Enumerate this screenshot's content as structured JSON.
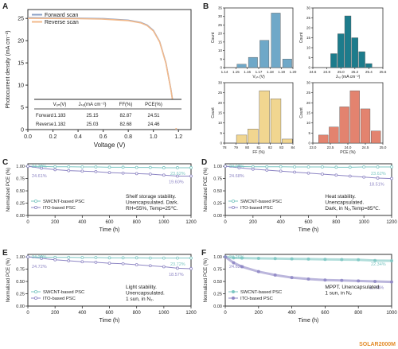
{
  "colors": {
    "teal": "#7cc6c2",
    "purple": "#8e86c4",
    "forward": "#8a9fc4",
    "reverse": "#f2b98b",
    "histA": "#6fa8c8",
    "histB": "#1d7c8c",
    "histC": "#f1d690",
    "histD": "#e3836f",
    "watermark": "#e38a28"
  },
  "watermark": "SOLAR2000M",
  "panelA": {
    "letter": "A",
    "xlabel": "Voltage (V)",
    "ylabel": "Photocurrent density (mA cm⁻²)",
    "xticks": [
      "0.0",
      "0.2",
      "0.4",
      "0.6",
      "0.8",
      "1.0",
      "1.2"
    ],
    "yticks": [
      "0",
      "5",
      "10",
      "15",
      "20",
      "25"
    ],
    "legend": [
      "Forward scan",
      "Reverse scan"
    ],
    "table": {
      "headers": [
        "Vₒₙ(V)",
        "Jₛₒ(mA cm⁻²)",
        "FF(%)",
        "PCE(%)"
      ],
      "rows": [
        {
          "label": "Forward",
          "values": [
            "1.183",
            "25.15",
            "82.87",
            "24.51"
          ]
        },
        {
          "label": "Reverse",
          "values": [
            "1.182",
            "25.03",
            "82.68",
            "24.46"
          ]
        }
      ]
    }
  },
  "panelB": {
    "letter": "B",
    "hists": [
      {
        "xlabel": "Vₒₙ (V)",
        "ylabel": "Count",
        "xticks": [
          "1.14",
          "1.15",
          "1.16",
          "1.17",
          "1.18",
          "1.19",
          "1.20"
        ],
        "yticks": [
          "0",
          "5",
          "10",
          "15",
          "20",
          "25",
          "30",
          "35"
        ]
      },
      {
        "xlabel": "Jₛₒ (mA cm⁻²)",
        "ylabel": "Count",
        "xticks": [
          "24.6",
          "24.8",
          "25.0",
          "25.2",
          "25.4",
          "25.6"
        ],
        "yticks": [
          "0",
          "5",
          "10",
          "15",
          "20",
          "25",
          "30"
        ]
      },
      {
        "xlabel": "FF (%)",
        "ylabel": "Count",
        "xticks": [
          "78",
          "79",
          "80",
          "81",
          "82",
          "83",
          "84"
        ],
        "yticks": [
          "0",
          "5",
          "10",
          "15",
          "20",
          "25",
          "30"
        ]
      },
      {
        "xlabel": "PCE (%)",
        "ylabel": "Count",
        "xticks": [
          "23.0",
          "23.5",
          "24.0",
          "24.5",
          "25.0"
        ],
        "yticks": [
          "0",
          "5",
          "10",
          "15",
          "20",
          "25",
          "30"
        ]
      }
    ]
  },
  "stability": [
    {
      "letter": "C",
      "xlabel": "Time (h)",
      "ylabel": "Normalized PCE (%)",
      "legend": [
        "SWCNT-based PSC",
        "ITO-based PSC"
      ],
      "annotation": [
        "Shelf storage stability.",
        "Unencapsulated. Dark.",
        "RH=55%, Temp=25℃."
      ],
      "labels": [
        "24.34%",
        "23.62%",
        "24.61%",
        "19.60%"
      ]
    },
    {
      "letter": "D",
      "xlabel": "Time (h)",
      "ylabel": "Normalized PCE (%)",
      "legend": [
        "SWCNT-based PSC",
        "ITO-based PSC"
      ],
      "annotation": [
        "Heat stability.",
        "Unencapsulated.",
        "Dark, in N₂,Temp=85℃."
      ],
      "labels": [
        "24.01%",
        "23.62%",
        "24.68%",
        "18.51%"
      ]
    },
    {
      "letter": "E",
      "xlabel": "Time (h)",
      "ylabel": "Normalized PCE (%)",
      "legend": [
        "SWCNT-based PSC",
        "ITO-based PSC"
      ],
      "annotation": [
        "Light stability.",
        "Unencapsulated.",
        "1 sun, in N₂."
      ],
      "labels": [
        "24.29%",
        "23.72%",
        "24.72%",
        "18.57%"
      ]
    },
    {
      "letter": "F",
      "xlabel": "Time (h)",
      "ylabel": "Normalized PCE (%)",
      "legend": [
        "SWCNT-based PSC",
        "ITO-based PSC"
      ],
      "annotation": [
        "MPPT. Unencapsulated.",
        "1 sun, in N₂"
      ],
      "labels": [
        "24.26%",
        "22.34%",
        "24.62%",
        "11.98%"
      ]
    }
  ],
  "chart_data": [
    {
      "type": "line",
      "panel": "A",
      "title": "",
      "xlabel": "Voltage (V)",
      "ylabel": "Photocurrent density (mA cm-2)",
      "xlim": [
        0,
        1.3
      ],
      "ylim": [
        0,
        27
      ],
      "series": [
        {
          "name": "Forward scan",
          "x": [
            0,
            0.2,
            0.4,
            0.6,
            0.8,
            0.9,
            0.95,
            1.0,
            1.05,
            1.1,
            1.14,
            1.17,
            1.183
          ],
          "y": [
            25.15,
            25.1,
            25.05,
            24.95,
            24.6,
            24.1,
            23.5,
            22.3,
            19.8,
            15.0,
            9.0,
            3.5,
            0
          ]
        },
        {
          "name": "Reverse scan",
          "x": [
            0,
            0.2,
            0.4,
            0.6,
            0.8,
            0.9,
            0.95,
            1.0,
            1.05,
            1.1,
            1.14,
            1.17,
            1.182
          ],
          "y": [
            25.03,
            25.0,
            24.95,
            24.85,
            24.5,
            24.0,
            23.4,
            22.2,
            19.7,
            14.9,
            8.9,
            3.4,
            0
          ]
        }
      ]
    },
    {
      "type": "bar",
      "panel": "B",
      "xlabel": "Voc (V)",
      "ylabel": "Count",
      "bins": [
        1.155,
        1.165,
        1.175,
        1.185,
        1.195
      ],
      "values": [
        2,
        6,
        16,
        32,
        5
      ],
      "binwidth": 0.008,
      "xlim": [
        1.14,
        1.2
      ],
      "ylim": [
        0,
        35
      ]
    },
    {
      "type": "bar",
      "panel": "B",
      "xlabel": "Jsc (mA cm-2)",
      "ylabel": "Count",
      "bins": [
        24.9,
        25.0,
        25.1,
        25.2,
        25.3,
        25.4
      ],
      "values": [
        7,
        17,
        26,
        15,
        8,
        2
      ],
      "binwidth": 0.09,
      "xlim": [
        24.6,
        25.6
      ],
      "ylim": [
        0,
        30
      ]
    },
    {
      "type": "bar",
      "panel": "B",
      "xlabel": "FF (%)",
      "ylabel": "Count",
      "bins": [
        79.5,
        80.5,
        81.5,
        82.5,
        83.5
      ],
      "values": [
        4,
        7,
        26,
        22,
        2
      ],
      "binwidth": 0.9,
      "xlim": [
        78,
        84
      ],
      "ylim": [
        0,
        30
      ]
    },
    {
      "type": "bar",
      "panel": "B",
      "xlabel": "PCE (%)",
      "ylabel": "Count",
      "bins": [
        23.3,
        23.6,
        23.9,
        24.2,
        24.5,
        24.8
      ],
      "values": [
        4,
        8,
        18,
        26,
        17,
        6
      ],
      "binwidth": 0.27,
      "xlim": [
        23.0,
        25.0
      ],
      "ylim": [
        0,
        30
      ]
    },
    {
      "type": "line",
      "panel": "C",
      "xlabel": "Time (h)",
      "ylabel": "Normalized PCE (%)",
      "xlim": [
        0,
        1200
      ],
      "ylim": [
        0,
        1.05
      ],
      "series": [
        {
          "name": "SWCNT-based PSC",
          "x": [
            0,
            100,
            200,
            300,
            400,
            500,
            600,
            700,
            800,
            900,
            1000,
            1100,
            1200
          ],
          "y": [
            1.0,
            0.995,
            0.99,
            0.99,
            0.985,
            0.985,
            0.98,
            0.98,
            0.975,
            0.975,
            0.97,
            0.97,
            0.97
          ]
        },
        {
          "name": "ITO-based PSC",
          "x": [
            0,
            100,
            200,
            300,
            400,
            500,
            600,
            700,
            800,
            900,
            1000,
            1100,
            1200
          ],
          "y": [
            1.0,
            0.96,
            0.93,
            0.91,
            0.9,
            0.89,
            0.87,
            0.86,
            0.85,
            0.84,
            0.82,
            0.8,
            0.8
          ]
        }
      ]
    },
    {
      "type": "line",
      "panel": "D",
      "xlabel": "Time (h)",
      "ylabel": "Normalized PCE (%)",
      "xlim": [
        0,
        1200
      ],
      "ylim": [
        0,
        1.05
      ],
      "series": [
        {
          "name": "SWCNT-based PSC",
          "x": [
            0,
            100,
            200,
            300,
            400,
            500,
            600,
            700,
            800,
            900,
            1000,
            1100,
            1200
          ],
          "y": [
            1.0,
            0.995,
            0.99,
            0.99,
            0.99,
            0.985,
            0.985,
            0.985,
            0.98,
            0.98,
            0.985,
            0.985,
            0.985
          ]
        },
        {
          "name": "ITO-based PSC",
          "x": [
            0,
            100,
            200,
            300,
            400,
            500,
            600,
            700,
            800,
            900,
            1000,
            1100,
            1200
          ],
          "y": [
            1.0,
            0.97,
            0.94,
            0.92,
            0.9,
            0.88,
            0.86,
            0.84,
            0.82,
            0.8,
            0.78,
            0.76,
            0.75
          ]
        }
      ]
    },
    {
      "type": "line",
      "panel": "E",
      "xlabel": "Time (h)",
      "ylabel": "Normalized PCE (%)",
      "xlim": [
        0,
        1200
      ],
      "ylim": [
        0,
        1.05
      ],
      "series": [
        {
          "name": "SWCNT-based PSC",
          "x": [
            0,
            100,
            200,
            300,
            400,
            500,
            600,
            700,
            800,
            900,
            1000,
            1100,
            1200
          ],
          "y": [
            1.0,
            0.995,
            0.99,
            0.99,
            0.985,
            0.985,
            0.98,
            0.98,
            0.98,
            0.975,
            0.975,
            0.975,
            0.975
          ]
        },
        {
          "name": "ITO-based PSC",
          "x": [
            0,
            100,
            200,
            300,
            400,
            500,
            600,
            700,
            800,
            900,
            1000,
            1100,
            1200
          ],
          "y": [
            1.0,
            0.97,
            0.94,
            0.92,
            0.9,
            0.89,
            0.87,
            0.86,
            0.84,
            0.82,
            0.8,
            0.77,
            0.76
          ]
        }
      ]
    },
    {
      "type": "scatter",
      "panel": "F",
      "xlabel": "Time (h)",
      "ylabel": "Normalized PCE (%)",
      "xlim": [
        0,
        1000
      ],
      "ylim": [
        0,
        1.05
      ],
      "series": [
        {
          "name": "SWCNT-based PSC",
          "x": [
            0,
            50,
            100,
            200,
            300,
            400,
            500,
            600,
            700,
            800,
            900,
            1000
          ],
          "y": [
            1.0,
            0.98,
            0.975,
            0.97,
            0.965,
            0.96,
            0.955,
            0.95,
            0.945,
            0.94,
            0.925,
            0.92
          ]
        },
        {
          "name": "ITO-based PSC",
          "x": [
            0,
            50,
            100,
            200,
            300,
            400,
            500,
            600,
            700,
            800,
            900,
            1000
          ],
          "y": [
            1.0,
            0.88,
            0.8,
            0.7,
            0.63,
            0.58,
            0.55,
            0.53,
            0.52,
            0.51,
            0.5,
            0.49
          ]
        }
      ]
    }
  ]
}
